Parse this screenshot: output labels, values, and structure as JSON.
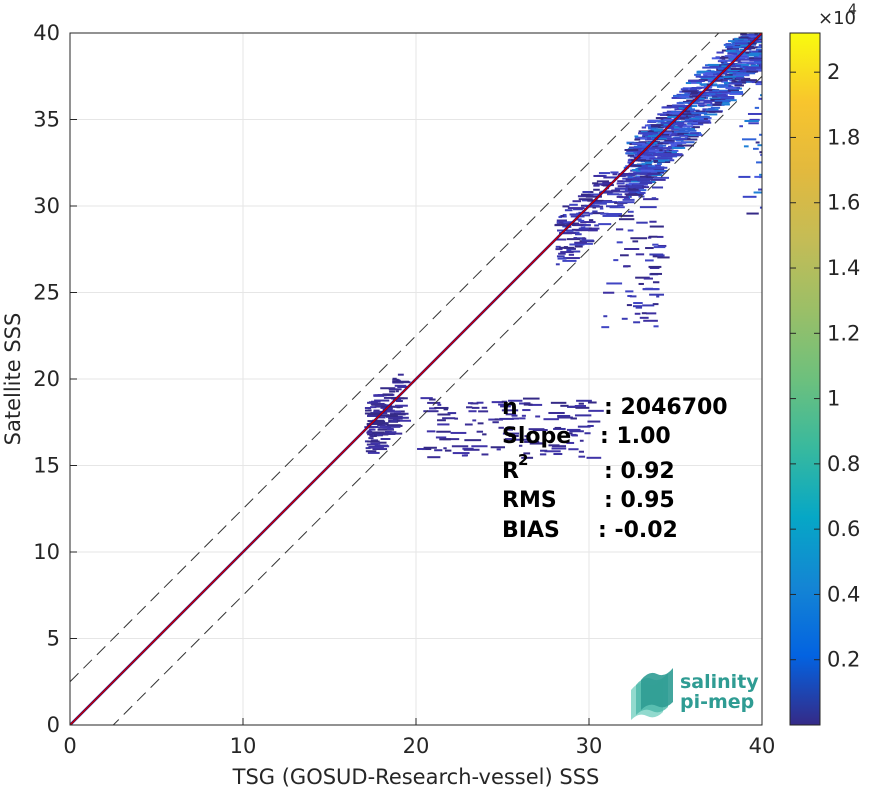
{
  "chart_data": {
    "type": "heatmap",
    "xlabel": "TSG (GOSUD-Research-vessel) SSS",
    "ylabel": "Satellite SSS",
    "xlim": [
      0,
      40
    ],
    "ylim": [
      0,
      40
    ],
    "xticks": [
      0,
      10,
      20,
      30,
      40
    ],
    "yticks": [
      0,
      5,
      10,
      15,
      20,
      25,
      30,
      35,
      40
    ],
    "grid": true,
    "colorbar": {
      "exponent_label": "×10",
      "exponent": "4",
      "ticks": [
        "0.2",
        "0.4",
        "0.6",
        "0.8",
        "1",
        "1.2",
        "1.4",
        "1.6",
        "1.8",
        "2"
      ],
      "tick_values": [
        0.2,
        0.4,
        0.6,
        0.8,
        1.0,
        1.2,
        1.4,
        1.6,
        1.8,
        2.0
      ],
      "max": 2.12,
      "colormap": "parula"
    },
    "reference_lines": {
      "identity": {
        "slope": 1,
        "intercept": 0,
        "color": "#0b0b8a"
      },
      "fit": {
        "slope": 1.0,
        "intercept": 0,
        "color": "#cc0000"
      },
      "bounds": [
        {
          "slope": 1,
          "intercept": 2.5
        },
        {
          "slope": 1,
          "intercept": -2.5
        }
      ]
    },
    "density_regions": [
      {
        "x": [
          32.0,
          40.0
        ],
        "y": [
          29.0,
          40.0
        ],
        "level": "high"
      },
      {
        "x": [
          28.0,
          34.0
        ],
        "y": [
          23.0,
          32.0
        ],
        "level": "medium"
      },
      {
        "x": [
          17.0,
          19.0
        ],
        "y": [
          15.0,
          21.0
        ],
        "level": "low"
      },
      {
        "x": [
          20.0,
          30.0
        ],
        "y": [
          15.5,
          19.0
        ],
        "level": "low"
      }
    ]
  },
  "stats": {
    "n_label": "n",
    "n_value": ": 2046700",
    "slope_label": "Slope",
    "slope_value": ": 1.00",
    "r2_label": "R",
    "r2_sup": "2",
    "r2_value": ": 0.92",
    "rms_label": "RMS",
    "rms_value": ": 0.95",
    "bias_label": "BIAS",
    "bias_value": ": -0.02"
  },
  "logo": {
    "line1": "salinity",
    "line2": "pi-mep"
  }
}
